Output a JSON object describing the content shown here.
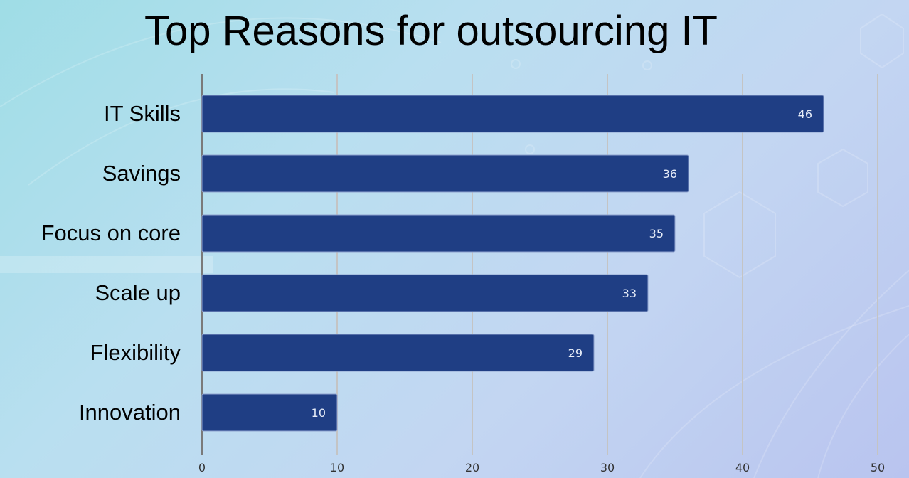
{
  "chart_data": {
    "type": "bar",
    "orientation": "horizontal",
    "title": "Top Reasons for outsourcing IT",
    "categories": [
      "IT Skills",
      "Savings",
      "Focus on core",
      "Scale up",
      "Flexibility",
      "Innovation"
    ],
    "values": [
      46,
      36,
      35,
      33,
      29,
      10
    ],
    "data_labels": [
      "46",
      "36",
      "35",
      "33",
      "29",
      "10"
    ],
    "xticks": [
      "0",
      "10",
      "20",
      "30",
      "40",
      "50"
    ],
    "xlim": [
      0,
      50
    ],
    "xlabel": "",
    "ylabel": "",
    "grid": true,
    "legend": "none",
    "bar_color": "#1f3e84",
    "grid_color": "#c4c4c4"
  }
}
